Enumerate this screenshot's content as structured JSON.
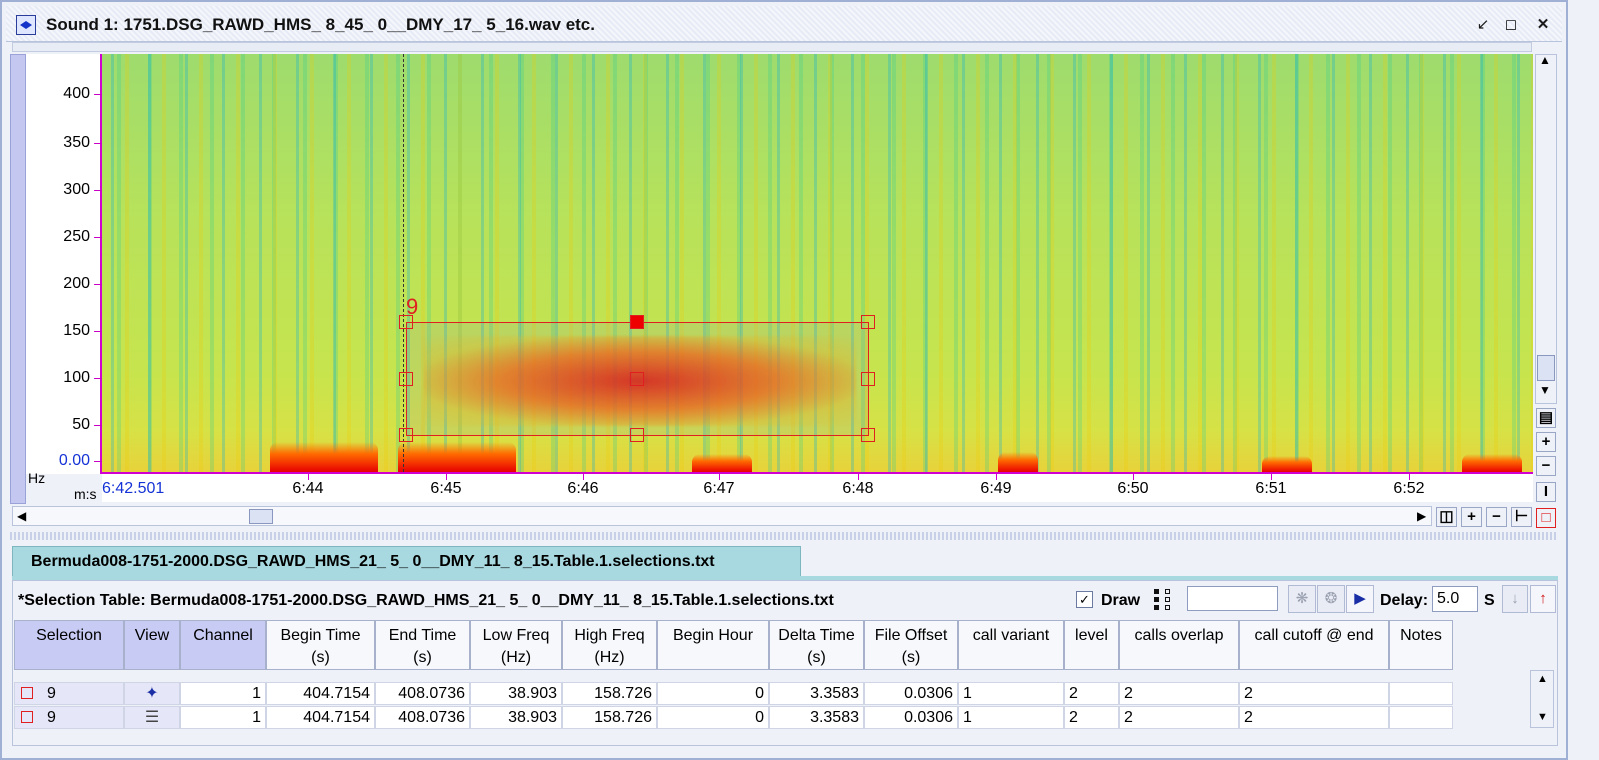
{
  "window": {
    "title": "Sound 1: 1751.DSG_RAWD_HMS_ 8_45_ 0__DMY_17_ 5_16.wav etc.",
    "buttons": [
      "minimize-icon",
      "maximize-icon",
      "close-icon"
    ]
  },
  "spectrogram": {
    "y_unit": "Hz",
    "x_unit": "m:s",
    "y_ticks": [
      "400",
      "350",
      "300",
      "250",
      "200",
      "150",
      "100",
      "50",
      "0.00"
    ],
    "x_start": "6:42.501",
    "x_ticks": [
      "6:44",
      "6:45",
      "6:46",
      "6:47",
      "6:48",
      "6:49",
      "6:50",
      "6:51",
      "6:52"
    ],
    "selection_label": "9",
    "colors": {
      "axis": "#d000d0",
      "selection": "#e02020",
      "start_time": "#1533d6"
    }
  },
  "table": {
    "tab_label": "Bermuda008-1751-2000.DSG_RAWD_HMS_21_ 5_ 0__DMY_11_ 8_15.Table.1.selections.txt",
    "title": "*Selection Table: Bermuda008-1751-2000.DSG_RAWD_HMS_21_ 5_ 0__DMY_11_ 8_15.Table.1.selections.txt",
    "draw_label": "Draw",
    "draw_checked": true,
    "search_value": "",
    "delay_label": "Delay:",
    "delay_value": "5.0",
    "delay_unit": "S",
    "columns": [
      [
        "Selection",
        ""
      ],
      [
        "View",
        ""
      ],
      [
        "Channel",
        ""
      ],
      [
        "Begin Time",
        "(s)"
      ],
      [
        "End Time",
        "(s)"
      ],
      [
        "Low Freq",
        "(Hz)"
      ],
      [
        "High Freq",
        "(Hz)"
      ],
      [
        "Begin Hour",
        ""
      ],
      [
        "Delta Time",
        "(s)"
      ],
      [
        "File Offset",
        "(s)"
      ],
      [
        "call variant",
        ""
      ],
      [
        "level",
        ""
      ],
      [
        "calls overlap",
        ""
      ],
      [
        "call cutoff @ end",
        ""
      ],
      [
        "Notes",
        ""
      ]
    ],
    "rows": [
      [
        "9",
        "waveform-view-icon",
        "1",
        "404.7154",
        "408.0736",
        "38.903",
        "158.726",
        "0",
        "3.3583",
        "0.0306",
        "1",
        "2",
        "2",
        "2",
        ""
      ],
      [
        "9",
        "spectrogram-view-icon",
        "1",
        "404.7154",
        "408.0736",
        "38.903",
        "158.726",
        "0",
        "3.3583",
        "0.0306",
        "1",
        "2",
        "2",
        "2",
        ""
      ]
    ]
  }
}
